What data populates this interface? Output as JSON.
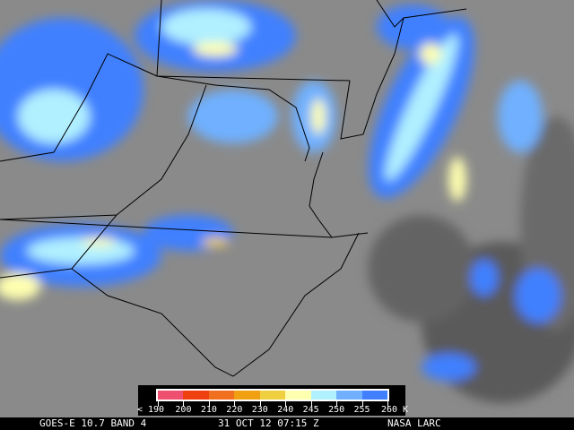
{
  "legend": {
    "labels": [
      "< 190",
      "200",
      "210",
      "220",
      "230",
      "240",
      "245",
      "250",
      "255",
      "260 K"
    ],
    "colors": [
      "#f05070",
      "#f04010",
      "#f07020",
      "#f0a010",
      "#f0d040",
      "#ffffb0",
      "#b0f0ff",
      "#70b0ff",
      "#4080ff"
    ]
  },
  "caption": {
    "product": "GOES-E 10.7 BAND 4",
    "datetime": "31 OCT 12 07:15 Z",
    "source": "NASA LARC"
  },
  "colors": {
    "background_gray": "#8a8a8a",
    "dark_gray": "#5a5a5a",
    "borders": "#000000"
  }
}
